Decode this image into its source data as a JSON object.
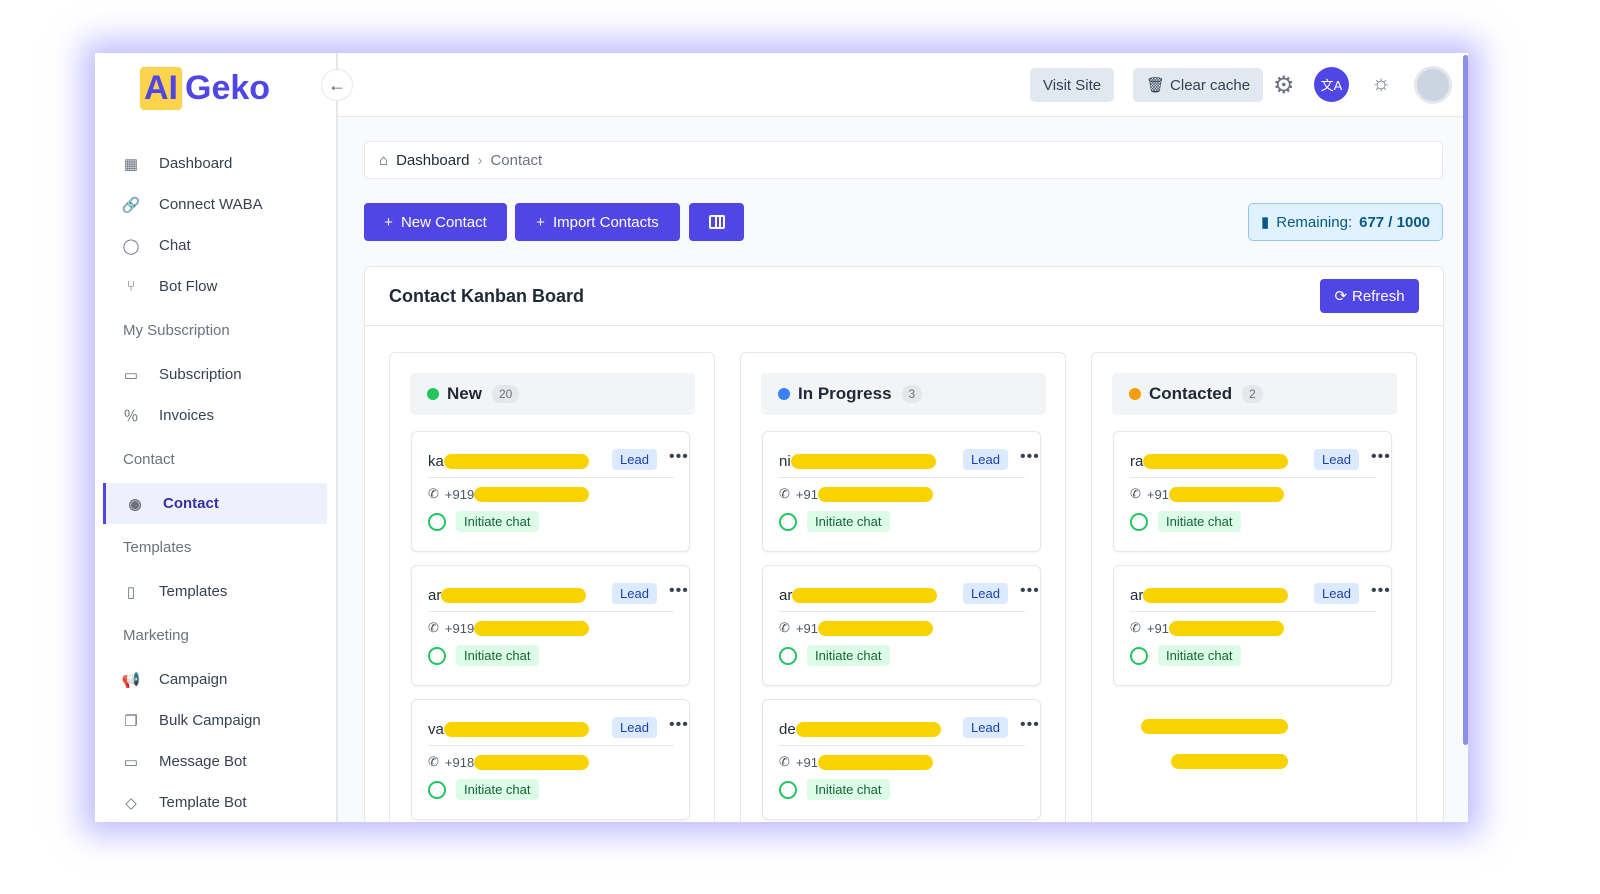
{
  "brand": {
    "logo_text_a": "AI",
    "logo_text_b": "Geko"
  },
  "sidebar": {
    "items_top": [
      {
        "label": "Dashboard",
        "icon": "grid-icon"
      },
      {
        "label": "Connect WABA",
        "icon": "link-icon"
      },
      {
        "label": "Chat",
        "icon": "chat-bubble-icon"
      },
      {
        "label": "Bot Flow",
        "icon": "flow-icon"
      }
    ],
    "sec_subscription": "My Subscription",
    "items_sub": [
      {
        "label": "Subscription",
        "icon": "card-icon"
      },
      {
        "label": "Invoices",
        "icon": "receipt-icon"
      }
    ],
    "sec_contact": "Contact",
    "contact": "Contact",
    "sec_templates": "Templates",
    "templates": "Templates",
    "sec_marketing": "Marketing",
    "items_marketing": [
      {
        "label": "Campaign"
      },
      {
        "label": "Bulk Campaign"
      },
      {
        "label": "Message Bot"
      },
      {
        "label": "Template Bot"
      }
    ]
  },
  "topbar": {
    "visit_site": "Visit Site",
    "clear_cache": "Clear cache"
  },
  "breadcrumb": {
    "home": "Dashboard",
    "current": "Contact"
  },
  "toolbar": {
    "new_contact": "New Contact",
    "import_contacts": "Import Contacts",
    "remaining_label": "Remaining:",
    "remaining_value": "677 / 1000"
  },
  "board": {
    "title": "Contact Kanban Board",
    "refresh": "Refresh",
    "columns": [
      {
        "name": "New",
        "count": "20",
        "color": "#22c55e",
        "cards": [
          {
            "name": "ka",
            "phone": "+919",
            "tag": "Lead",
            "action": "Initiate chat"
          },
          {
            "name": "ar",
            "phone": "+919",
            "tag": "Lead",
            "action": "Initiate chat"
          },
          {
            "name": "va",
            "phone": "+918",
            "tag": "Lead",
            "action": "Initiate chat"
          }
        ]
      },
      {
        "name": "In Progress",
        "count": "3",
        "color": "#3b82f6",
        "cards": [
          {
            "name": "ni",
            "phone": "+91",
            "tag": "Lead",
            "action": "Initiate chat"
          },
          {
            "name": "ar",
            "phone": "+91",
            "tag": "Lead",
            "action": "Initiate chat"
          },
          {
            "name": "de",
            "phone": "+91",
            "tag": "Lead",
            "action": "Initiate chat"
          }
        ]
      },
      {
        "name": "Contacted",
        "count": "2",
        "color": "#f59e0b",
        "cards": [
          {
            "name": "ra",
            "phone": "+91",
            "tag": "Lead",
            "action": "Initiate chat"
          },
          {
            "name": "ar",
            "phone": "+91",
            "tag": "Lead",
            "action": "Initiate chat"
          }
        ]
      }
    ]
  }
}
